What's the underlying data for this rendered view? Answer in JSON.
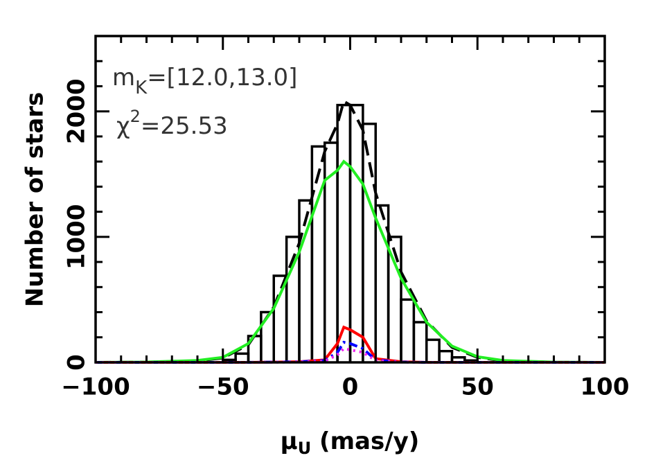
{
  "chart_data": {
    "type": "histogram",
    "ylabel": "Number of stars",
    "xlabel": {
      "symbol": "μ",
      "sub": "U",
      "rest": " (mas/y)"
    },
    "annotations": [
      {
        "base": "m",
        "sub": "K",
        "rest": "=[12.0,13.0]"
      },
      {
        "base": "χ",
        "sup": "2",
        "rest": "=25.53"
      }
    ],
    "xlim": [
      -100,
      100
    ],
    "ylim": [
      0,
      2600
    ],
    "xticks": [
      {
        "value": -100,
        "label": "−100"
      },
      {
        "value": -50,
        "label": "−50"
      },
      0,
      50,
      100
    ],
    "yticks": [
      0,
      1000,
      2000
    ],
    "xminorticks": [
      -90,
      -80,
      -70,
      -60,
      -40,
      -30,
      -20,
      -10,
      10,
      20,
      30,
      40,
      60,
      70,
      80,
      90
    ],
    "yminorticks": [
      200,
      400,
      600,
      800,
      1200,
      1400,
      1600,
      1800,
      2200,
      2400
    ],
    "bins": [
      -50,
      -45,
      -40,
      -35,
      -30,
      -25,
      -20,
      -15,
      -10,
      -5,
      0,
      5,
      10,
      15,
      20,
      25,
      30,
      35,
      40,
      45,
      50
    ],
    "counts": [
      20,
      70,
      210,
      400,
      690,
      1000,
      1290,
      1720,
      1750,
      2050,
      2050,
      1900,
      1250,
      1000,
      500,
      320,
      180,
      90,
      40,
      15
    ],
    "hist_color": "#000000",
    "x": [
      -100,
      -80,
      -60,
      -50,
      -40,
      -30,
      -20,
      -10,
      -5,
      -2.5,
      0,
      5,
      10,
      20,
      30,
      40,
      50,
      60,
      80,
      100
    ],
    "series": [
      {
        "color": "#000000",
        "dash": "dashed",
        "values": [
          0,
          2,
          12,
          35,
          140,
          440,
          950,
          1680,
          1900,
          2080,
          2050,
          1850,
          1350,
          720,
          330,
          120,
          40,
          12,
          1,
          0
        ]
      },
      {
        "color": "#22ee22",
        "dash": "solid",
        "values": [
          0,
          3,
          15,
          40,
          150,
          430,
          880,
          1450,
          1530,
          1600,
          1560,
          1420,
          1150,
          670,
          320,
          130,
          45,
          15,
          2,
          0
        ]
      },
      {
        "color": "#ff0000",
        "dash": "solid",
        "values": [
          0,
          0,
          0,
          0,
          0,
          2,
          5,
          20,
          150,
          280,
          260,
          200,
          30,
          5,
          0,
          0,
          0,
          0,
          0,
          0
        ]
      },
      {
        "color": "#0000ff",
        "dash": "dashdot",
        "values": [
          0,
          0,
          0,
          0,
          0,
          2,
          5,
          15,
          80,
          160,
          150,
          110,
          20,
          3,
          0,
          0,
          0,
          0,
          0,
          0
        ]
      },
      {
        "color": "#ee22ee",
        "dash": "dotted",
        "values": [
          0,
          0,
          0,
          0,
          0,
          1,
          3,
          10,
          60,
          110,
          100,
          80,
          15,
          2,
          0,
          0,
          0,
          0,
          0,
          0
        ]
      }
    ]
  }
}
